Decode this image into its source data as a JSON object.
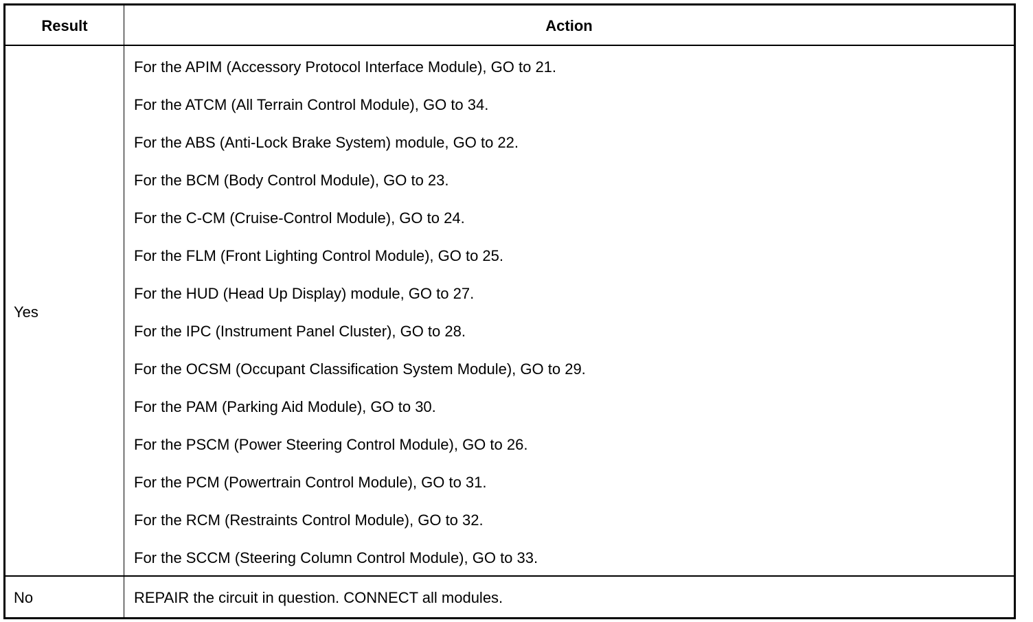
{
  "headers": {
    "result": "Result",
    "action": "Action"
  },
  "rows": [
    {
      "result": "Yes",
      "actions": [
        "For the APIM (Accessory Protocol Interface Module), GO to 21.",
        "For the ATCM (All Terrain Control Module), GO to 34.",
        "For the ABS (Anti-Lock Brake System) module, GO to 22.",
        "For the BCM (Body Control Module), GO to 23.",
        "For the C-CM (Cruise-Control Module), GO to 24.",
        "For the FLM (Front Lighting Control Module), GO to 25.",
        "For the HUD (Head Up Display) module, GO to 27.",
        "For the IPC (Instrument Panel Cluster), GO to 28.",
        "For the OCSM (Occupant Classification System Module), GO to 29.",
        "For the PAM (Parking Aid Module), GO to 30.",
        "For the PSCM (Power Steering Control Module), GO to 26.",
        "For the PCM (Powertrain Control Module), GO to 31.",
        "For the RCM (Restraints Control Module), GO to 32.",
        "For the SCCM (Steering Column Control Module), GO to 33."
      ]
    },
    {
      "result": "No",
      "actions": [
        "REPAIR the circuit in question. CONNECT all modules."
      ]
    }
  ]
}
